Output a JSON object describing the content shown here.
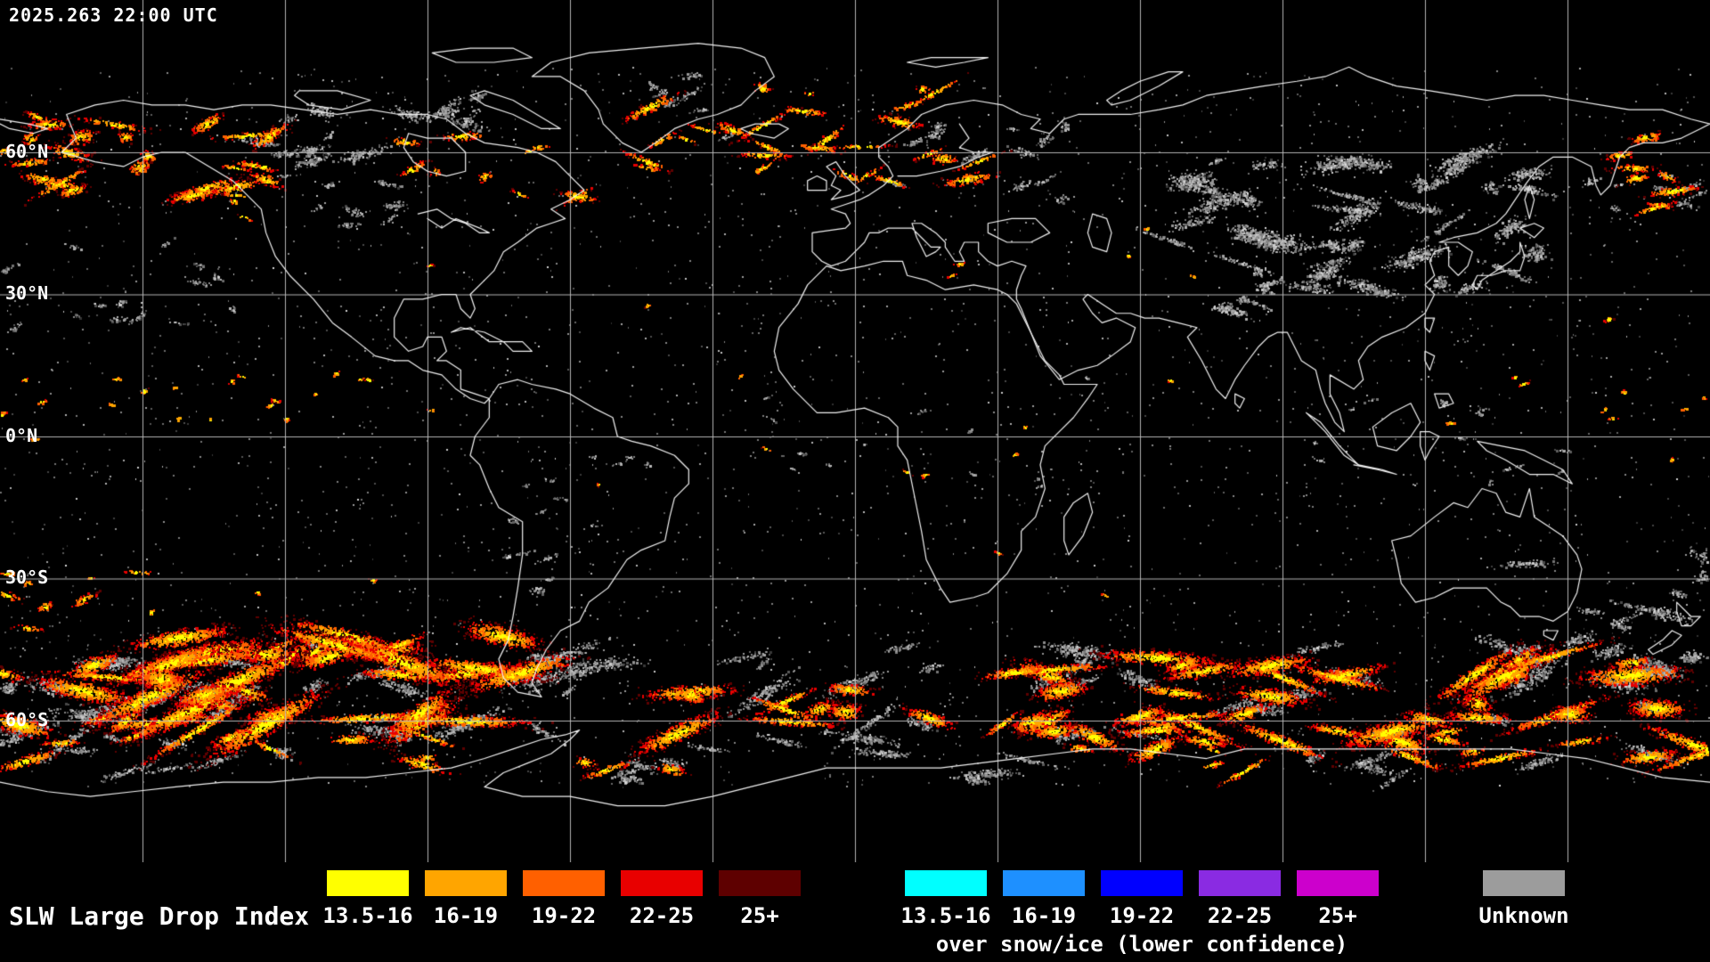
{
  "header": {
    "timestamp": "2025.263 22:00 UTC"
  },
  "map": {
    "latitude_labels": [
      {
        "label": "60°N",
        "lat": 60
      },
      {
        "label": "30°N",
        "lat": 30
      },
      {
        "label": "0°N",
        "lat": 0
      },
      {
        "label": "30°S",
        "lat": -30
      },
      {
        "label": "60°S",
        "lat": -60
      }
    ],
    "lon_gridline_step_deg": 30,
    "background": "#000000",
    "coastline_color": "#f2f2f2",
    "grid_color": "#bdbdbd"
  },
  "legend": {
    "title": "SLW Large Drop Index",
    "liquid": {
      "items": [
        {
          "label": "13.5-16",
          "color": "#ffff00"
        },
        {
          "label": "16-19",
          "color": "#ffa500"
        },
        {
          "label": "19-22",
          "color": "#ff6000"
        },
        {
          "label": "22-25",
          "color": "#e80000"
        },
        {
          "label": "25+",
          "color": "#5e0000"
        }
      ]
    },
    "snow_ice": {
      "subtitle": "over snow/ice (lower confidence)",
      "items": [
        {
          "label": "13.5-16",
          "color": "#00ffff"
        },
        {
          "label": "16-19",
          "color": "#1e90ff"
        },
        {
          "label": "19-22",
          "color": "#0000ff"
        },
        {
          "label": "22-25",
          "color": "#8a2be2"
        },
        {
          "label": "25+",
          "color": "#cc00cc"
        }
      ]
    },
    "unknown": {
      "label": "Unknown",
      "color": "#9c9c9c"
    }
  }
}
